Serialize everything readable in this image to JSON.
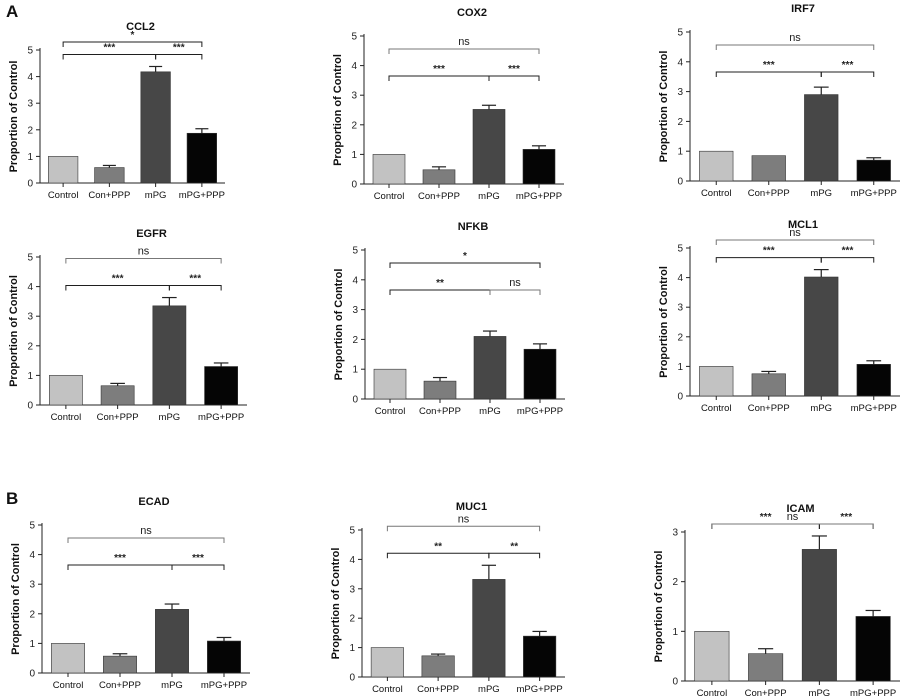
{
  "panel_labels": [
    "A",
    "B"
  ],
  "colors": {
    "control": "#c2c2c2",
    "conppp": "#7d7d7d",
    "mpg": "#474747",
    "mpgppp": "#050505",
    "bracket": "#1f1f1f",
    "ns_bracket": "#777777"
  },
  "chart_data": [
    {
      "id": "ccl2",
      "type": "bar",
      "title": "CCL2",
      "ylabel": "Proportion of Control",
      "categories": [
        "Control",
        "Con+PPP",
        "mPG",
        "mPG+PPP"
      ],
      "values": [
        1.0,
        0.58,
        4.18,
        1.87
      ],
      "errors": [
        0.0,
        0.08,
        0.2,
        0.17
      ],
      "ylim": [
        0,
        5
      ],
      "yticks": [
        0,
        1,
        2,
        3,
        4,
        5
      ],
      "brackets": [
        {
          "from": 0,
          "to": 2,
          "level": 1,
          "label": "***"
        },
        {
          "from": 2,
          "to": 3,
          "level": 1,
          "label": "***"
        },
        {
          "from": 0,
          "to": 3,
          "level": 2,
          "label": "*"
        }
      ]
    },
    {
      "id": "cox2",
      "type": "bar",
      "title": "COX2",
      "ylabel": "Proportion of Control",
      "categories": [
        "Control",
        "Con+PPP",
        "mPG",
        "mPG+PPP"
      ],
      "values": [
        1.0,
        0.48,
        2.52,
        1.17
      ],
      "errors": [
        0.0,
        0.1,
        0.14,
        0.12
      ],
      "ylim": [
        0,
        5
      ],
      "yticks": [
        0,
        1,
        2,
        3,
        4,
        5
      ],
      "brackets": [
        {
          "from": 0,
          "to": 2,
          "level": 1,
          "label": "***"
        },
        {
          "from": 2,
          "to": 3,
          "level": 1,
          "label": "***"
        },
        {
          "from": 0,
          "to": 3,
          "level": 2,
          "label": "ns"
        }
      ]
    },
    {
      "id": "irf7",
      "type": "bar",
      "title": "IRF7",
      "ylabel": "Proportion of Control",
      "categories": [
        "Control",
        "Con+PPP",
        "mPG",
        "mPG+PPP"
      ],
      "values": [
        1.0,
        0.85,
        2.9,
        0.7
      ],
      "errors": [
        0.0,
        0.0,
        0.25,
        0.08
      ],
      "ylim": [
        0,
        5
      ],
      "yticks": [
        0,
        1,
        2,
        3,
        4,
        5
      ],
      "brackets": [
        {
          "from": 0,
          "to": 2,
          "level": 1,
          "label": "***"
        },
        {
          "from": 2,
          "to": 3,
          "level": 1,
          "label": "***"
        },
        {
          "from": 0,
          "to": 3,
          "level": 2,
          "label": "ns"
        }
      ]
    },
    {
      "id": "egfr",
      "type": "bar",
      "title": "EGFR",
      "ylabel": "Proportion of Control",
      "categories": [
        "Control",
        "Con+PPP",
        "mPG",
        "mPG+PPP"
      ],
      "values": [
        1.0,
        0.65,
        3.35,
        1.3
      ],
      "errors": [
        0.0,
        0.08,
        0.28,
        0.12
      ],
      "ylim": [
        0,
        5
      ],
      "yticks": [
        0,
        1,
        2,
        3,
        4,
        5
      ],
      "brackets": [
        {
          "from": 0,
          "to": 2,
          "level": 1,
          "label": "***"
        },
        {
          "from": 2,
          "to": 3,
          "level": 1,
          "label": "***"
        },
        {
          "from": 0,
          "to": 3,
          "level": 2,
          "label": "ns"
        }
      ]
    },
    {
      "id": "nfkb",
      "type": "bar",
      "title": "NFKB",
      "ylabel": "Proportion of Control",
      "categories": [
        "Control",
        "Con+PPP",
        "mPG",
        "mPG+PPP"
      ],
      "values": [
        1.0,
        0.6,
        2.1,
        1.67
      ],
      "errors": [
        0.0,
        0.12,
        0.18,
        0.18
      ],
      "ylim": [
        0,
        5
      ],
      "yticks": [
        0,
        1,
        2,
        3,
        4,
        5
      ],
      "brackets": [
        {
          "from": 0,
          "to": 2,
          "level": 1,
          "label": "**"
        },
        {
          "from": 2,
          "to": 3,
          "level": 1,
          "label": "ns"
        },
        {
          "from": 0,
          "to": 3,
          "level": 2,
          "label": "*"
        }
      ]
    },
    {
      "id": "mcl1",
      "type": "bar",
      "title": "MCL1",
      "ylabel": "Proportion of Control",
      "categories": [
        "Control",
        "Con+PPP",
        "mPG",
        "mPG+PPP"
      ],
      "values": [
        1.0,
        0.75,
        4.02,
        1.07
      ],
      "errors": [
        0.0,
        0.08,
        0.25,
        0.12
      ],
      "ylim": [
        0,
        5
      ],
      "yticks": [
        0,
        1,
        2,
        3,
        4,
        5
      ],
      "brackets": [
        {
          "from": 0,
          "to": 2,
          "level": 1,
          "label": "***"
        },
        {
          "from": 2,
          "to": 3,
          "level": 1,
          "label": "***"
        },
        {
          "from": 0,
          "to": 3,
          "level": 2,
          "label": "ns"
        }
      ]
    },
    {
      "id": "ecad",
      "type": "bar",
      "title": "ECAD",
      "ylabel": "Proportion of Control",
      "categories": [
        "Control",
        "Con+PPP",
        "mPG",
        "mPG+PPP"
      ],
      "values": [
        1.0,
        0.57,
        2.15,
        1.08
      ],
      "errors": [
        0.0,
        0.08,
        0.18,
        0.12
      ],
      "ylim": [
        0,
        5
      ],
      "yticks": [
        0,
        1,
        2,
        3,
        4,
        5
      ],
      "brackets": [
        {
          "from": 0,
          "to": 2,
          "level": 1,
          "label": "***"
        },
        {
          "from": 2,
          "to": 3,
          "level": 1,
          "label": "***"
        },
        {
          "from": 0,
          "to": 3,
          "level": 2,
          "label": "ns"
        }
      ]
    },
    {
      "id": "muc1",
      "type": "bar",
      "title": "MUC1",
      "ylabel": "Proportion of Control",
      "categories": [
        "Control",
        "Con+PPP",
        "mPG",
        "mPG+PPP"
      ],
      "values": [
        1.0,
        0.72,
        3.32,
        1.39
      ],
      "errors": [
        0.0,
        0.06,
        0.48,
        0.16
      ],
      "ylim": [
        0,
        5
      ],
      "yticks": [
        0,
        1,
        2,
        3,
        4,
        5
      ],
      "brackets": [
        {
          "from": 0,
          "to": 2,
          "level": 1,
          "label": "**"
        },
        {
          "from": 2,
          "to": 3,
          "level": 1,
          "label": "**"
        },
        {
          "from": 0,
          "to": 3,
          "level": 2,
          "label": "ns"
        }
      ]
    },
    {
      "id": "icam",
      "type": "bar",
      "title": "ICAM",
      "ylabel": "Proportion of Control",
      "categories": [
        "Control",
        "Con+PPP",
        "mPG",
        "mPG+PPP"
      ],
      "values": [
        1.0,
        0.55,
        2.65,
        1.3
      ],
      "errors": [
        0.0,
        0.1,
        0.27,
        0.12
      ],
      "ylim": [
        0,
        3
      ],
      "yticks": [
        0,
        1,
        2,
        3
      ],
      "brackets": [
        {
          "from": 0,
          "to": 2,
          "level": 1,
          "label": "***"
        },
        {
          "from": 2,
          "to": 3,
          "level": 1,
          "label": "***"
        },
        {
          "from": 0,
          "to": 3,
          "level": 2,
          "label": "ns"
        }
      ]
    }
  ]
}
